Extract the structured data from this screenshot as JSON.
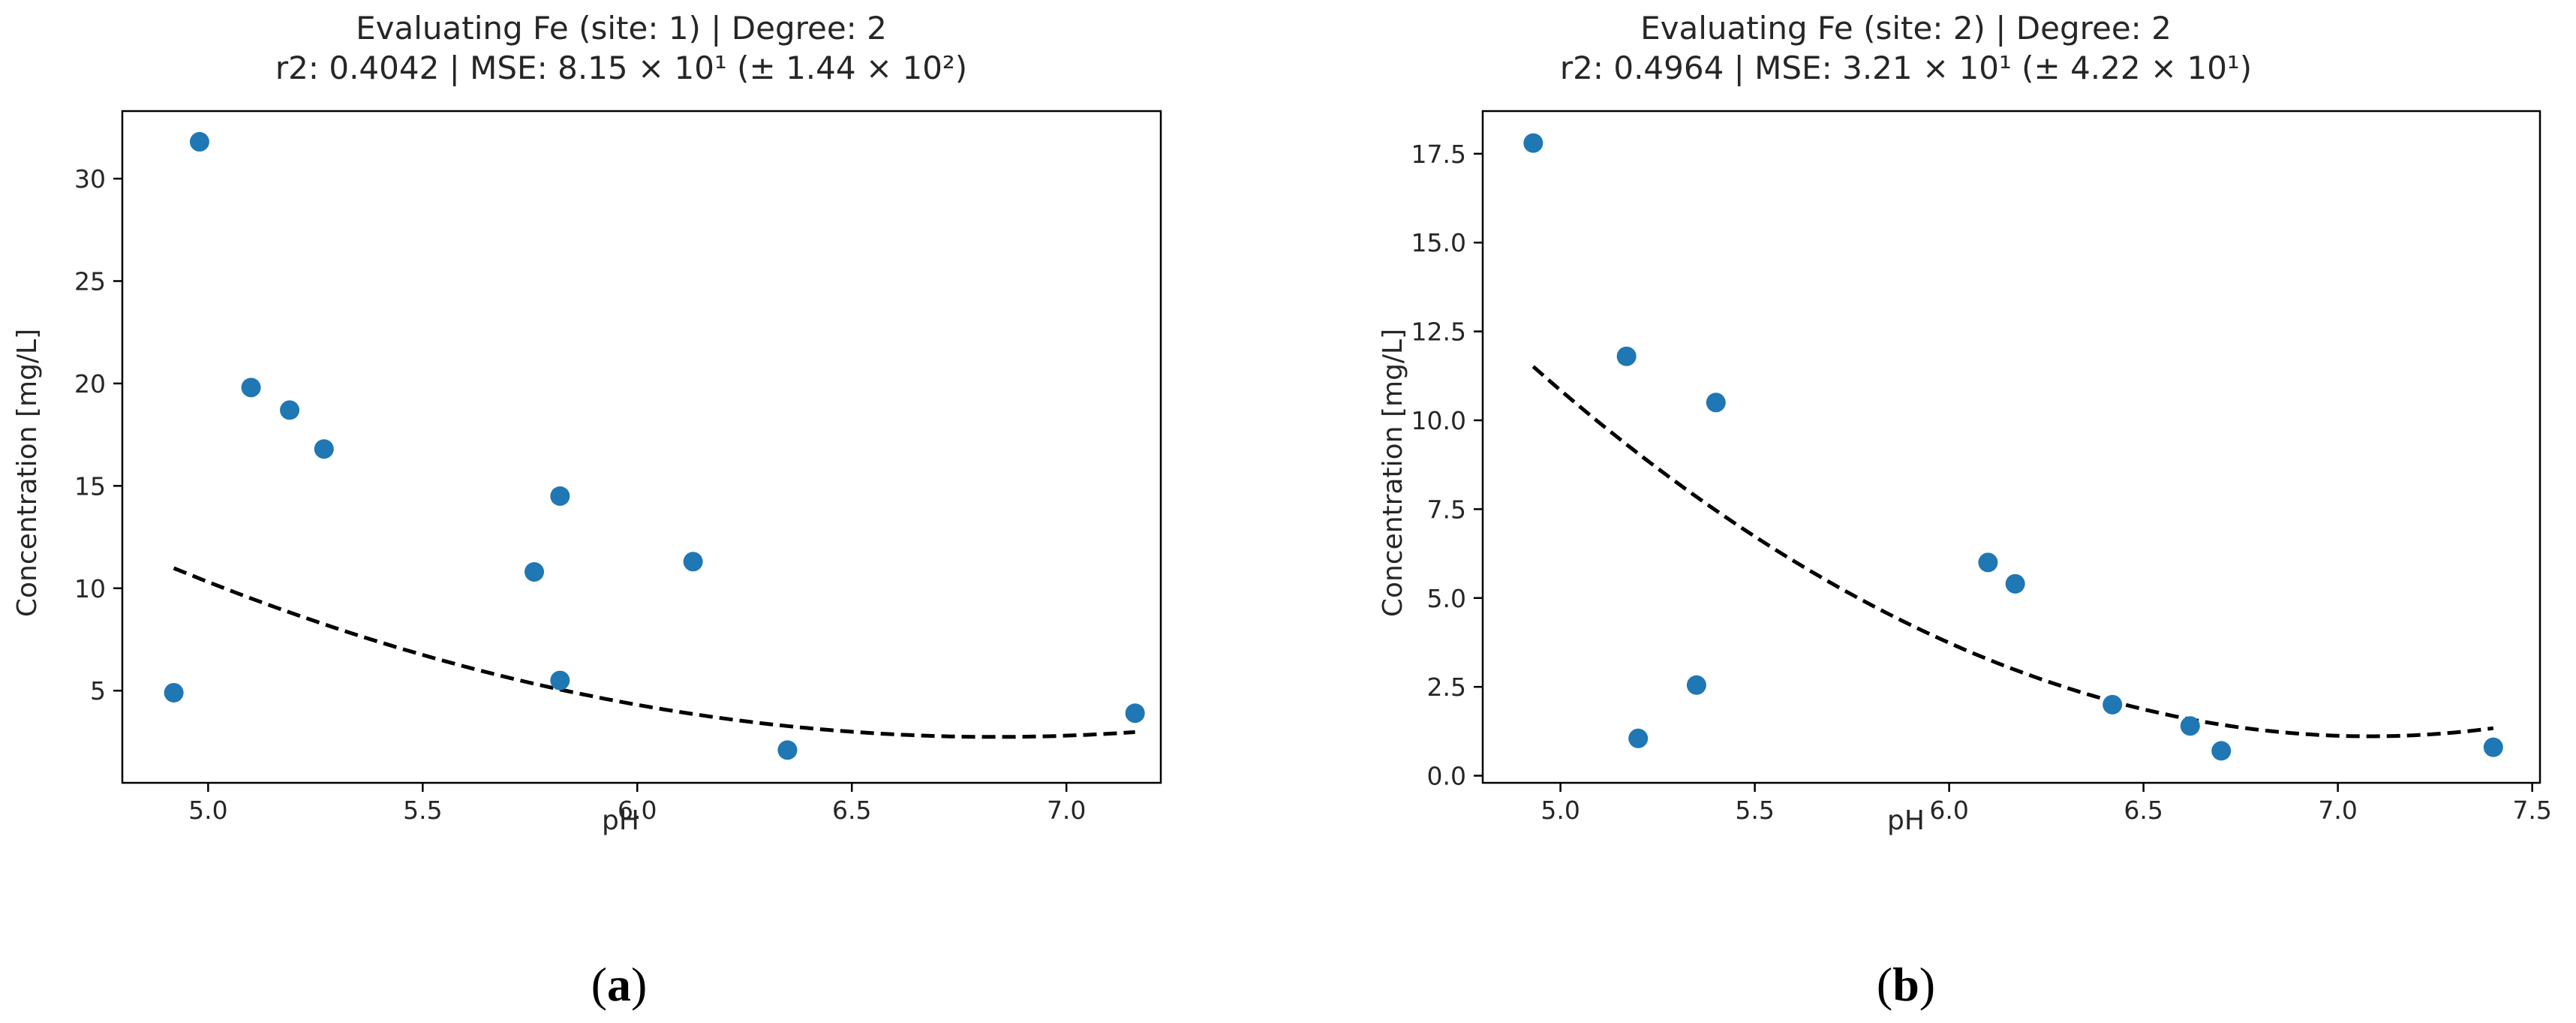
{
  "colors": {
    "points": "#1f77b4",
    "fit": "#000000",
    "axes": "#000000",
    "text": "#262626"
  },
  "chart_data": [
    {
      "type": "scatter",
      "title_line1": "Evaluating Fe (site: 1) | Degree: 2",
      "title_line2": "r2: 0.4042 | MSE: 8.15 × 10¹ (± 1.44 × 10²)",
      "xlabel": "pH",
      "ylabel": "Concentration [mg/L]",
      "xlim": [
        4.8,
        7.22
      ],
      "ylim": [
        0.5,
        33.3
      ],
      "xticks": [
        5.0,
        5.5,
        6.0,
        6.5,
        7.0
      ],
      "xtick_labels": [
        "5.0",
        "5.5",
        "6.0",
        "6.5",
        "7.0"
      ],
      "yticks": [
        5,
        10,
        15,
        20,
        25,
        30
      ],
      "ytick_labels": [
        "5",
        "10",
        "15",
        "20",
        "25",
        "30"
      ],
      "points": [
        {
          "x": 4.92,
          "y": 4.9
        },
        {
          "x": 4.98,
          "y": 31.8
        },
        {
          "x": 5.1,
          "y": 19.8
        },
        {
          "x": 5.19,
          "y": 18.7
        },
        {
          "x": 5.27,
          "y": 16.8
        },
        {
          "x": 5.76,
          "y": 10.8
        },
        {
          "x": 5.82,
          "y": 14.5
        },
        {
          "x": 5.82,
          "y": 5.5
        },
        {
          "x": 6.13,
          "y": 11.3
        },
        {
          "x": 6.35,
          "y": 2.1
        },
        {
          "x": 7.16,
          "y": 3.9
        }
      ],
      "fit": {
        "style": "dashed",
        "degree": 2,
        "x_range": [
          4.92,
          7.16
        ],
        "coefficients": [
          2.2467,
          -30.7133,
          107.7075
        ]
      },
      "panel_label": "a"
    },
    {
      "type": "scatter",
      "title_line1": "Evaluating Fe (site: 2) | Degree: 2",
      "title_line2": "r2: 0.4964 | MSE: 3.21 × 10¹ (± 4.22 × 10¹)",
      "xlabel": "pH",
      "ylabel": "Concentration [mg/L]",
      "xlim": [
        4.8,
        7.52
      ],
      "ylim": [
        -0.2,
        18.7
      ],
      "xticks": [
        5.0,
        5.5,
        6.0,
        6.5,
        7.0,
        7.5
      ],
      "xtick_labels": [
        "5.0",
        "5.5",
        "6.0",
        "6.5",
        "7.0",
        "7.5"
      ],
      "yticks": [
        0.0,
        2.5,
        5.0,
        7.5,
        10.0,
        12.5,
        15.0,
        17.5
      ],
      "ytick_labels": [
        "0.0",
        "2.5",
        "5.0",
        "7.5",
        "10.0",
        "12.5",
        "15.0",
        "17.5"
      ],
      "points": [
        {
          "x": 4.93,
          "y": 17.8
        },
        {
          "x": 5.17,
          "y": 11.8
        },
        {
          "x": 5.2,
          "y": 1.05
        },
        {
          "x": 5.35,
          "y": 2.55
        },
        {
          "x": 5.4,
          "y": 10.5
        },
        {
          "x": 6.1,
          "y": 6.0
        },
        {
          "x": 6.17,
          "y": 5.4
        },
        {
          "x": 6.42,
          "y": 2.0
        },
        {
          "x": 6.62,
          "y": 1.4
        },
        {
          "x": 6.7,
          "y": 0.7
        },
        {
          "x": 7.4,
          "y": 0.8
        }
      ],
      "fit": {
        "style": "dashed",
        "degree": 2,
        "x_range": [
          4.93,
          7.4
        ],
        "coefficients": [
          2.2467,
          -31.8213,
          113.7851
        ]
      },
      "panel_label": "b"
    }
  ]
}
